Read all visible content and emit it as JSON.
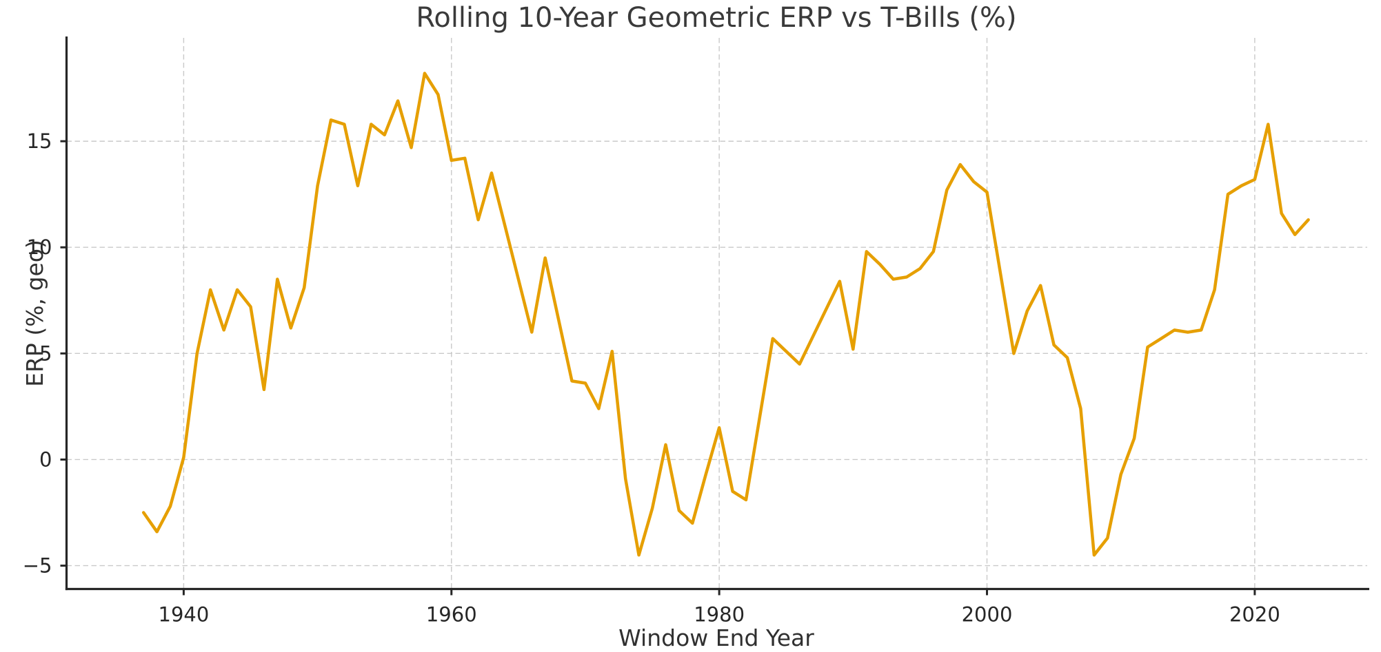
{
  "figure": {
    "background_color": "#ffffff",
    "title_color": "#3a3a3a",
    "axis_color": "#262626",
    "grid_color": "#c9c9c9"
  },
  "chart_data": {
    "type": "line",
    "title": "Rolling 10-Year Geometric ERP vs T-Bills (%)",
    "xlabel": "Window End Year",
    "ylabel": "ERP (%, geo)",
    "line_color": "#E69F00",
    "grid": "dashed, both axes",
    "legend": "none",
    "xlim": [
      1931.25,
      2028.4
    ],
    "ylim": [
      -6.1,
      19.87
    ],
    "xticks": [
      1940,
      1960,
      1980,
      2000,
      2020
    ],
    "xtick_labels": [
      "1940",
      "1960",
      "1980",
      "2000",
      "2020"
    ],
    "yticks": [
      -5,
      0,
      5,
      10,
      15
    ],
    "ytick_labels": [
      "−5",
      "0",
      "5",
      "10",
      "15"
    ],
    "x": [
      1937,
      1938,
      1939,
      1940,
      1941,
      1942,
      1943,
      1944,
      1945,
      1946,
      1947,
      1948,
      1949,
      1950,
      1951,
      1952,
      1953,
      1954,
      1955,
      1956,
      1957,
      1958,
      1959,
      1960,
      1961,
      1962,
      1963,
      1964,
      1965,
      1966,
      1967,
      1968,
      1969,
      1970,
      1971,
      1972,
      1973,
      1974,
      1975,
      1976,
      1977,
      1978,
      1979,
      1980,
      1981,
      1982,
      1983,
      1984,
      1985,
      1986,
      1987,
      1988,
      1989,
      1990,
      1991,
      1992,
      1993,
      1994,
      1995,
      1996,
      1997,
      1998,
      1999,
      2000,
      2001,
      2002,
      2003,
      2004,
      2005,
      2006,
      2007,
      2008,
      2009,
      2010,
      2011,
      2012,
      2013,
      2014,
      2015,
      2016,
      2017,
      2018,
      2019,
      2020,
      2021,
      2022,
      2023,
      2024
    ],
    "series": [
      {
        "name": "Rolling 10-year geometric ERP vs T-Bills",
        "values": [
          -2.5,
          -3.4,
          -2.2,
          0.1,
          5.0,
          8.0,
          6.1,
          8.0,
          7.2,
          3.3,
          8.5,
          6.2,
          8.1,
          12.9,
          16.0,
          15.8,
          12.9,
          15.8,
          15.3,
          16.9,
          14.7,
          18.2,
          17.2,
          14.1,
          14.2,
          11.3,
          13.5,
          11.0,
          8.5,
          6.0,
          9.5,
          6.6,
          3.7,
          3.6,
          2.4,
          5.1,
          -0.9,
          -4.5,
          -2.3,
          0.7,
          -2.4,
          -3.0,
          -0.7,
          1.5,
          -1.5,
          -1.9,
          1.9,
          5.7,
          5.1,
          4.5,
          5.8,
          7.1,
          8.4,
          5.2,
          9.8,
          9.2,
          8.5,
          8.6,
          9.0,
          9.8,
          12.7,
          13.9,
          13.1,
          12.6,
          8.8,
          5.0,
          7.0,
          8.2,
          5.4,
          4.8,
          2.4,
          -4.5,
          -3.7,
          -0.7,
          1.0,
          5.3,
          5.7,
          6.1,
          6.0,
          6.1,
          8.0,
          12.5,
          12.9,
          13.2,
          15.8,
          11.6,
          10.6,
          11.3
        ]
      }
    ]
  }
}
